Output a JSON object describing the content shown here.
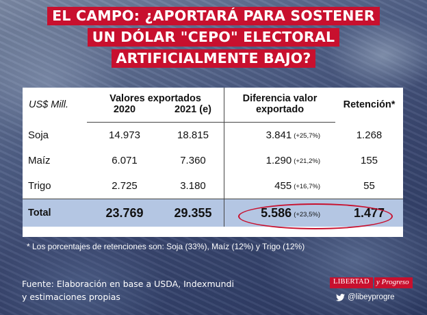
{
  "title": {
    "lines": [
      "EL CAMPO: ¿APORTARÁ PARA SOSTENER",
      "UN DÓLAR \"CEPO\" ELECTORAL",
      "ARTIFICIALMENTE BAJO?"
    ]
  },
  "table": {
    "units_label": "US$ Mill.",
    "group_header_exports": "Valores exportados",
    "col_2020": "2020",
    "col_2021": "2021 (e)",
    "group_header_diff_line1": "Diferencia valor",
    "group_header_diff_line2": "exportado",
    "col_retention": "Retención*",
    "rows": [
      {
        "name": "Soja",
        "v2020": "14.973",
        "v2021": "18.815",
        "diff": "3.841",
        "pct": "(+25,7%)",
        "ret": "1.268"
      },
      {
        "name": "Maíz",
        "v2020": "6.071",
        "v2021": "7.360",
        "diff": "1.290",
        "pct": "(+21,2%)",
        "ret": "155"
      },
      {
        "name": "Trigo",
        "v2020": "2.725",
        "v2021": "3.180",
        "diff": "455",
        "pct": "(+16,7%)",
        "ret": "55"
      }
    ],
    "total": {
      "name": "Total",
      "v2020": "23.769",
      "v2021": "29.355",
      "diff": "5.586",
      "pct": "(+23,5%)",
      "ret": "1.477"
    }
  },
  "note": "* Los porcentajes de retenciones son: Soja (33%), Maíz (12%) y Trigo (12%)",
  "source": {
    "line1": "Fuente: Elaboración en base a USDA, Indexmundi",
    "line2": "y estimaciones propias"
  },
  "logo": {
    "part1": "LIBERTAD",
    "part2": "y Progreso"
  },
  "twitter_handle": "@libeyprogre",
  "colors": {
    "accent_red": "#c8102e",
    "total_row_bg": "#b4c6e3"
  }
}
